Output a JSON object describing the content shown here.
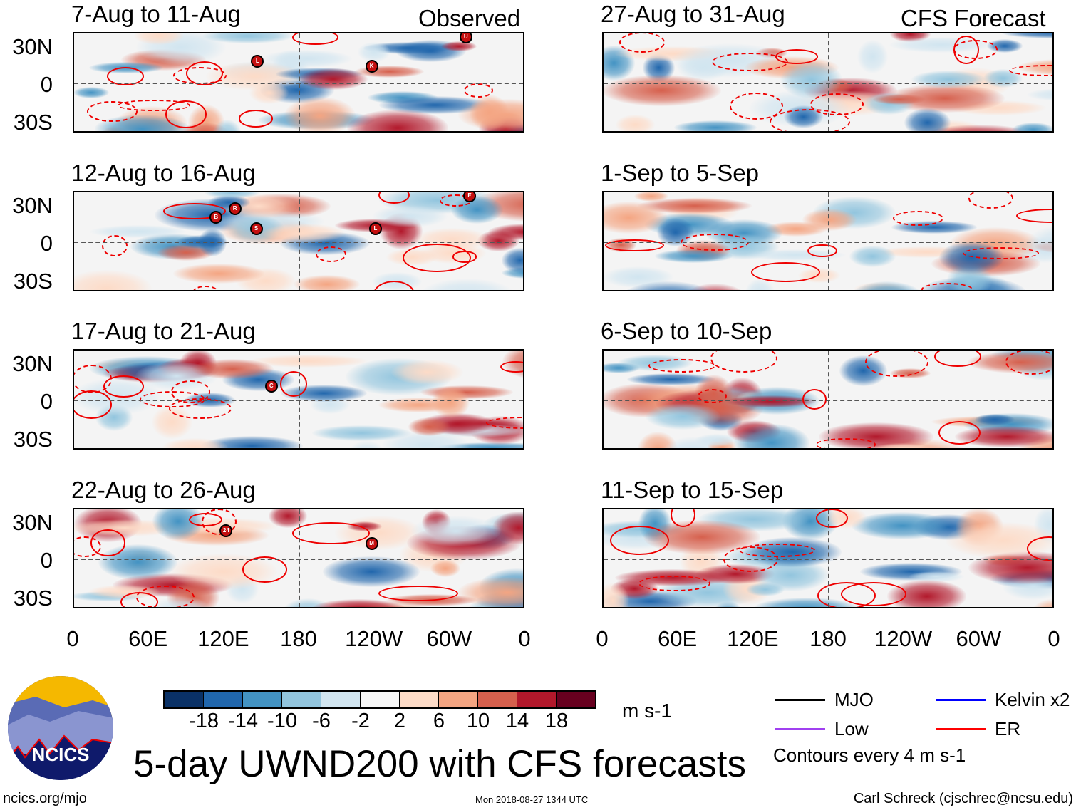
{
  "header": {
    "left_tag": "Observed",
    "right_tag": "CFS Forecast"
  },
  "panels": {
    "observed": [
      {
        "title": "7-Aug to 11-Aug",
        "storms": [
          {
            "label": "L",
            "lon": 145,
            "lat": 19
          },
          {
            "label": "K",
            "lon": 236,
            "lat": 15
          },
          {
            "label": "U",
            "lon": 311,
            "lat": 38
          }
        ]
      },
      {
        "title": "12-Aug to 16-Aug",
        "storms": [
          {
            "label": "B",
            "lon": 112,
            "lat": 21
          },
          {
            "label": "R",
            "lon": 127,
            "lat": 28
          },
          {
            "label": "S",
            "lon": 144,
            "lat": 12
          },
          {
            "label": "L",
            "lon": 239,
            "lat": 12
          },
          {
            "label": "E",
            "lon": 314,
            "lat": 38
          }
        ]
      },
      {
        "title": "17-Aug to 21-Aug",
        "storms": [
          {
            "label": "C",
            "lon": 156,
            "lat": 13
          }
        ]
      },
      {
        "title": "22-Aug to 26-Aug",
        "storms": [
          {
            "label": "24",
            "lon": 120,
            "lat": 24
          },
          {
            "label": "M",
            "lon": 236,
            "lat": 14
          }
        ]
      }
    ],
    "forecast": [
      {
        "title": "27-Aug to 31-Aug",
        "storms": []
      },
      {
        "title": "1-Sep to 5-Sep",
        "storms": []
      },
      {
        "title": "6-Sep to 10-Sep",
        "storms": []
      },
      {
        "title": "11-Sep to 15-Sep",
        "storms": []
      }
    ]
  },
  "lat_labels": [
    "30N",
    "0",
    "30S"
  ],
  "lon_labels": [
    "0",
    "60E",
    "120E",
    "180",
    "120W",
    "60W",
    "0"
  ],
  "colorbar": {
    "colors": [
      "#0a3166",
      "#2066ac",
      "#4393c3",
      "#92c5de",
      "#d1e5f0",
      "#f7f7f7",
      "#fddbc7",
      "#f4a582",
      "#d6604d",
      "#b2182b",
      "#67001f"
    ],
    "labels": [
      "-18",
      "-14",
      "-10",
      "-6",
      "-2",
      "2",
      "6",
      "10",
      "14",
      "18"
    ],
    "units": "m s-1"
  },
  "legend": {
    "items": [
      {
        "label": "MJO",
        "color": "#000000"
      },
      {
        "label": "Kelvin x2",
        "color": "#0000ff"
      },
      {
        "label": "Low",
        "color": "#a040f0"
      },
      {
        "label": "ER",
        "color": "#ff0000"
      }
    ],
    "note": "Contours every 4 m s-1"
  },
  "logo": {
    "text": "NCICS"
  },
  "footer": {
    "title": "5-day UWND200 with CFS forecasts",
    "url": "ncics.org/mjo",
    "timestamp": "Mon 2018-08-27 1344 UTC",
    "author": "Carl Schreck (cjschrec@ncsu.edu)"
  }
}
